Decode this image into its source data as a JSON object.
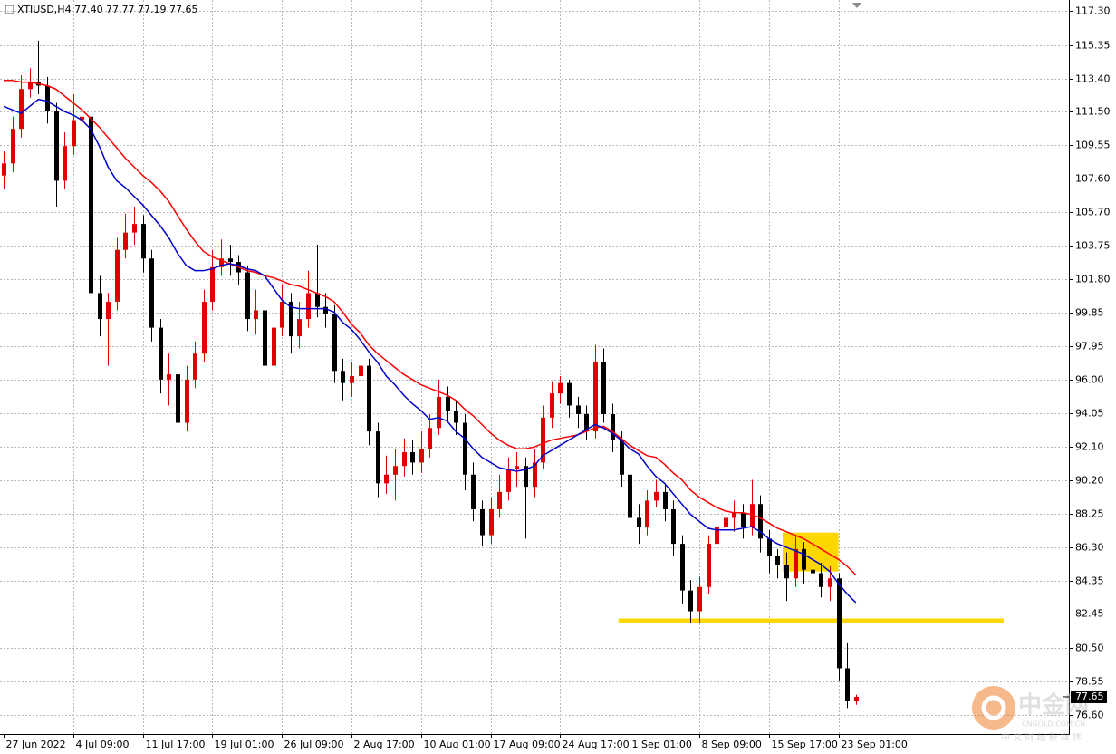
{
  "chart_data": {
    "type": "candlestick",
    "title": "XTIUSD,H4  77.40 77.77 77.19 77.65",
    "categories": [
      "27 Jun 2022",
      null,
      null,
      null,
      null,
      null,
      null,
      null,
      "4 Jul 09:00",
      null,
      null,
      null,
      null,
      null,
      null,
      null,
      "11 Jul 17:00",
      null,
      null,
      null,
      null,
      null,
      null,
      null,
      "19 Jul 01:00",
      null,
      null,
      null,
      null,
      null,
      null,
      null,
      "26 Jul 09:00",
      null,
      null,
      null,
      null,
      null,
      null,
      null,
      "2 Aug 17:00",
      null,
      null,
      null,
      null,
      null,
      null,
      null,
      "10 Aug 01:00",
      null,
      null,
      null,
      null,
      null,
      null,
      null,
      "17 Aug 09:00",
      null,
      null,
      null,
      null,
      null,
      null,
      null,
      "24 Aug 17:00",
      null,
      null,
      null,
      null,
      null,
      null,
      null,
      "1 Sep 01:00",
      null,
      null,
      null,
      null,
      null,
      null,
      null,
      "8 Sep 09:00",
      null,
      null,
      null,
      null,
      null,
      null,
      null,
      "15 Sep 17:00",
      null,
      null,
      null,
      null,
      null,
      null,
      null,
      "23 Sep 01:00",
      null,
      null
    ],
    "open": [
      107.8,
      108.5,
      110.5,
      112.8,
      113.2,
      113.0,
      111.5,
      107.5,
      109.5,
      111.0,
      111.2,
      101.0,
      99.5,
      100.5,
      103.5,
      104.5,
      105.0,
      103.0,
      99.0,
      96.0,
      96.3,
      93.5,
      96.0,
      97.5,
      100.5,
      102.5,
      103.0,
      102.8,
      102.2,
      99.5,
      100.0,
      96.8,
      99.0,
      100.5,
      98.5,
      99.5,
      101.0,
      100.2,
      99.8,
      96.5,
      95.8,
      96.2,
      96.8,
      93.0,
      90.0,
      90.5,
      91.0,
      91.8,
      91.2,
      92.0,
      93.2,
      95.0,
      94.2,
      93.5,
      90.5,
      88.5,
      87.0,
      88.5,
      89.5,
      90.8,
      91.0,
      89.8,
      91.2,
      93.8,
      95.2,
      95.8,
      94.5,
      94.0,
      93.0,
      97.0,
      94.0,
      92.5,
      90.5,
      88.0,
      87.5,
      89.0,
      89.5,
      88.5,
      86.5,
      83.8,
      82.6,
      84.0,
      86.5,
      87.5,
      88.0,
      88.3,
      87.5,
      88.8,
      86.8,
      85.8,
      85.3,
      84.5,
      86.2,
      85.0,
      84.8,
      84.0,
      84.5,
      79.3,
      77.4
    ],
    "high": [
      109.2,
      111.2,
      113.6,
      114.0,
      115.6,
      113.5,
      112.0,
      110.3,
      112.5,
      112.8,
      111.8,
      102.0,
      101.0,
      104.2,
      105.6,
      106.0,
      105.5,
      103.5,
      99.5,
      97.5,
      96.8,
      96.8,
      98.2,
      101.2,
      103.5,
      104.1,
      103.8,
      103.2,
      102.6,
      101.2,
      100.5,
      99.8,
      101.5,
      101.0,
      100.5,
      102.3,
      103.8,
      101.0,
      100.3,
      97.2,
      97.0,
      98.5,
      97.2,
      93.5,
      91.6,
      92.0,
      92.6,
      92.5,
      93.0,
      94.0,
      96.0,
      95.6,
      94.8,
      94.0,
      91.2,
      89.0,
      89.2,
      90.5,
      91.5,
      91.8,
      91.5,
      92.0,
      94.5,
      95.9,
      96.2,
      96.0,
      95.0,
      94.5,
      98.0,
      97.8,
      94.6,
      93.0,
      91.0,
      88.8,
      89.6,
      90.2,
      90.0,
      89.0,
      87.0,
      84.4,
      84.6,
      87.0,
      88.2,
      88.8,
      89.0,
      88.8,
      90.2,
      89.3,
      87.3,
      86.2,
      86.0,
      87.0,
      86.6,
      85.6,
      85.4,
      85.2,
      84.8,
      80.8,
      77.77
    ],
    "low": [
      107.0,
      108.0,
      110.0,
      112.3,
      112.5,
      110.8,
      106.0,
      107.0,
      109.0,
      110.2,
      99.8,
      98.5,
      96.8,
      100.0,
      103.0,
      103.8,
      102.2,
      98.2,
      95.2,
      94.5,
      91.2,
      93.0,
      95.5,
      97.0,
      100.0,
      102.0,
      102.0,
      101.5,
      98.8,
      98.6,
      95.8,
      96.2,
      98.5,
      97.5,
      97.8,
      99.0,
      99.6,
      99.0,
      95.8,
      94.8,
      95.0,
      95.8,
      92.2,
      89.2,
      89.4,
      89.0,
      90.4,
      90.5,
      90.6,
      91.5,
      92.8,
      93.6,
      92.8,
      89.6,
      87.8,
      86.4,
      86.5,
      88.0,
      89.0,
      89.8,
      86.8,
      89.2,
      90.8,
      93.2,
      94.6,
      93.8,
      93.2,
      92.5,
      92.6,
      93.5,
      91.8,
      89.8,
      87.2,
      86.5,
      87.0,
      88.6,
      87.8,
      85.8,
      83.0,
      81.9,
      81.9,
      83.6,
      86.0,
      87.0,
      87.2,
      86.8,
      87.0,
      86.0,
      84.8,
      84.5,
      83.2,
      84.0,
      84.2,
      83.4,
      83.4,
      83.2,
      78.6,
      77.0,
      77.19
    ],
    "close": [
      108.5,
      110.5,
      112.8,
      113.2,
      113.0,
      111.5,
      107.5,
      109.5,
      111.0,
      111.2,
      101.0,
      99.5,
      100.5,
      103.5,
      104.5,
      105.0,
      103.0,
      99.0,
      96.0,
      96.3,
      93.5,
      96.0,
      97.5,
      100.5,
      102.5,
      103.0,
      102.8,
      102.2,
      99.5,
      100.0,
      96.8,
      99.0,
      100.5,
      98.5,
      99.5,
      101.0,
      100.2,
      99.8,
      96.5,
      95.8,
      96.2,
      96.8,
      93.0,
      90.0,
      90.5,
      91.0,
      91.8,
      91.2,
      92.0,
      93.2,
      95.0,
      94.2,
      93.5,
      90.5,
      88.5,
      87.0,
      88.5,
      89.5,
      90.8,
      91.0,
      89.8,
      91.2,
      93.8,
      95.2,
      95.8,
      94.5,
      94.0,
      93.0,
      97.0,
      94.0,
      92.5,
      90.5,
      88.0,
      87.5,
      89.0,
      89.5,
      88.5,
      86.5,
      83.8,
      82.6,
      84.0,
      86.5,
      87.5,
      88.0,
      88.3,
      87.5,
      88.8,
      86.8,
      85.8,
      85.3,
      84.5,
      86.2,
      85.0,
      84.8,
      84.0,
      84.5,
      79.3,
      77.4,
      77.65
    ],
    "up_color": "#e00000",
    "down_color": "#000000",
    "overlays": [
      {
        "color": "#ff0000",
        "values": [
          113.3,
          113.3,
          113.2,
          113.2,
          113.1,
          113.0,
          112.8,
          112.4,
          112.0,
          111.6,
          111.1,
          110.6,
          110.0,
          109.4,
          108.8,
          108.3,
          107.8,
          107.4,
          106.9,
          106.3,
          105.5,
          104.7,
          104.0,
          103.4,
          103.1,
          102.9,
          102.7,
          102.5,
          102.3,
          102.2,
          102.0,
          101.9,
          101.7,
          101.5,
          101.4,
          101.2,
          101.0,
          100.8,
          100.5,
          99.9,
          99.2,
          98.7,
          98.0,
          97.5,
          97.1,
          96.7,
          96.3,
          96.0,
          95.7,
          95.5,
          95.3,
          95.1,
          94.8,
          94.3,
          93.9,
          93.4,
          92.9,
          92.5,
          92.2,
          92.0,
          92.0,
          92.1,
          92.3,
          92.5,
          92.6,
          92.7,
          92.8,
          93.0,
          93.2,
          93.3,
          93.0,
          92.6,
          92.2,
          91.9,
          91.6,
          91.5,
          91.1,
          90.6,
          90.2,
          89.6,
          89.2,
          88.9,
          88.6,
          88.4,
          88.3,
          88.3,
          88.2,
          88.0,
          87.7,
          87.4,
          87.2,
          87.0,
          86.8,
          86.5,
          86.2,
          85.9,
          85.6,
          85.2,
          84.7
        ]
      },
      {
        "color": "#0000cc",
        "values": [
          111.8,
          111.6,
          111.4,
          111.8,
          112.2,
          112.1,
          111.8,
          111.5,
          111.3,
          111.0,
          110.5,
          109.5,
          108.3,
          107.5,
          107.1,
          106.6,
          106.1,
          105.5,
          104.9,
          104.2,
          103.3,
          102.6,
          102.3,
          102.3,
          102.4,
          102.6,
          102.7,
          102.6,
          102.4,
          102.3,
          102.0,
          101.3,
          100.6,
          100.2,
          100.1,
          100.1,
          100.1,
          100.1,
          99.9,
          99.3,
          98.9,
          98.3,
          97.6,
          97.0,
          96.2,
          95.7,
          95.1,
          94.6,
          94.2,
          93.7,
          93.8,
          93.6,
          93.0,
          92.6,
          92.0,
          91.5,
          91.2,
          90.9,
          90.8,
          90.7,
          90.8,
          91.0,
          91.6,
          91.9,
          92.2,
          92.5,
          92.8,
          93.1,
          93.4,
          93.2,
          92.9,
          92.5,
          92.0,
          91.7,
          91.0,
          90.4,
          90.0,
          89.4,
          88.8,
          88.2,
          87.8,
          87.4,
          87.3,
          87.3,
          87.3,
          87.4,
          87.5,
          87.2,
          86.8,
          86.5,
          86.3,
          86.1,
          85.9,
          85.6,
          85.3,
          84.9,
          84.2,
          83.6,
          83.1
        ]
      }
    ],
    "support_level": 82.05,
    "zone": [
      84.9,
      87.15
    ],
    "zone_color": "#ffd700",
    "last_price": 77.65,
    "ylim": [
      75.5,
      117.95
    ],
    "yticks": [
      {
        "value": 117.3,
        "label": "117.30"
      },
      115.35,
      {
        "value": 113.4,
        "label": "113.40"
      },
      {
        "value": 111.5,
        "label": "111.50"
      },
      109.55,
      {
        "value": 107.6,
        "label": "107.60"
      },
      {
        "value": 105.7,
        "label": "105.70"
      },
      103.75,
      {
        "value": 101.8,
        "label": "101.80"
      },
      99.85,
      97.95,
      {
        "value": 96,
        "label": "96.00"
      },
      94.05,
      {
        "value": 92.1,
        "label": "92.10"
      },
      {
        "value": 90.2,
        "label": "90.20"
      },
      88.25,
      {
        "value": 86.3,
        "label": "86.30"
      },
      84.35,
      82.45,
      {
        "value": 80.5,
        "label": "80.50"
      },
      78.55,
      {
        "value": 76.6,
        "label": "76.60"
      }
    ],
    "grid": true,
    "watermark": {
      "name": "中金网",
      "domain": "CNGOLD.COM.CN",
      "slogan": "中 文 财 经 新 媒 体"
    }
  }
}
